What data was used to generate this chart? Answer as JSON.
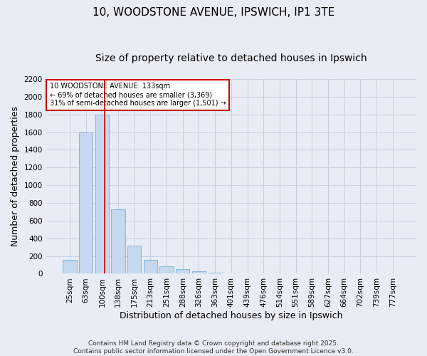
{
  "title_line1": "10, WOODSTONE AVENUE, IPSWICH, IP1 3TE",
  "title_line2": "Size of property relative to detached houses in Ipswich",
  "xlabel": "Distribution of detached houses by size in Ipswich",
  "ylabel": "Number of detached properties",
  "categories": [
    "25sqm",
    "63sqm",
    "100sqm",
    "138sqm",
    "175sqm",
    "213sqm",
    "251sqm",
    "288sqm",
    "326sqm",
    "363sqm",
    "401sqm",
    "439sqm",
    "476sqm",
    "514sqm",
    "551sqm",
    "589sqm",
    "627sqm",
    "664sqm",
    "702sqm",
    "739sqm",
    "777sqm"
  ],
  "values": [
    160,
    1600,
    1800,
    730,
    320,
    160,
    85,
    50,
    25,
    10,
    5,
    2,
    1,
    0,
    0,
    0,
    0,
    0,
    0,
    0,
    0
  ],
  "bar_color": "#c5d8f0",
  "bar_edge_color": "#7bafd4",
  "bar_width": 0.85,
  "ylim": [
    0,
    2200
  ],
  "yticks": [
    0,
    200,
    400,
    600,
    800,
    1000,
    1200,
    1400,
    1600,
    1800,
    2000,
    2200
  ],
  "vline_x": 2.15,
  "vline_color": "#cc0000",
  "annotation_text": "10 WOODSTONE AVENUE: 133sqm\n← 69% of detached houses are smaller (3,369)\n31% of semi-detached houses are larger (1,501) →",
  "annotation_box_color": "#cc0000",
  "grid_color": "#c8d0de",
  "bg_color": "#e8ecf4",
  "footer_line1": "Contains HM Land Registry data © Crown copyright and database right 2025.",
  "footer_line2": "Contains public sector information licensed under the Open Government Licence v3.0.",
  "title_fontsize": 11,
  "subtitle_fontsize": 10,
  "tick_fontsize": 7.5,
  "label_fontsize": 9,
  "footer_fontsize": 6.5
}
